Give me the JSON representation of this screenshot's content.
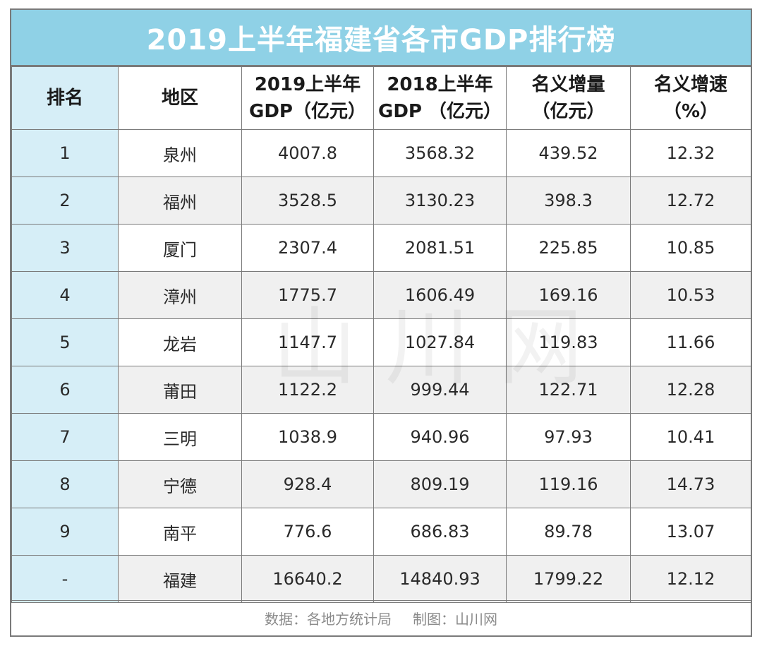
{
  "title": "2019上半年福建省各市GDP排行榜",
  "headers": {
    "rank": "排名",
    "region": "地区",
    "gdp2019_line1": "2019上半年",
    "gdp2019_line2": "GDP（亿元）",
    "gdp2018_line1": "2018上半年",
    "gdp2018_line2": "GDP （亿元）",
    "increase_line1": "名义增量",
    "increase_line2": "（亿元）",
    "rate_line1": "名义增速",
    "rate_line2": "（%）"
  },
  "rows": [
    {
      "rank": "1",
      "region": "泉州",
      "gdp2019": "4007.8",
      "gdp2018": "3568.32",
      "increase": "439.52",
      "rate": "12.32"
    },
    {
      "rank": "2",
      "region": "福州",
      "gdp2019": "3528.5",
      "gdp2018": "3130.23",
      "increase": "398.3",
      "rate": "12.72"
    },
    {
      "rank": "3",
      "region": "厦门",
      "gdp2019": "2307.4",
      "gdp2018": "2081.51",
      "increase": "225.85",
      "rate": "10.85"
    },
    {
      "rank": "4",
      "region": "漳州",
      "gdp2019": "1775.7",
      "gdp2018": "1606.49",
      "increase": "169.16",
      "rate": "10.53"
    },
    {
      "rank": "5",
      "region": "龙岩",
      "gdp2019": "1147.7",
      "gdp2018": "1027.84",
      "increase": "119.83",
      "rate": "11.66"
    },
    {
      "rank": "6",
      "region": "莆田",
      "gdp2019": "1122.2",
      "gdp2018": "999.44",
      "increase": "122.71",
      "rate": "12.28"
    },
    {
      "rank": "7",
      "region": "三明",
      "gdp2019": "1038.9",
      "gdp2018": "940.96",
      "increase": "97.93",
      "rate": "10.41"
    },
    {
      "rank": "8",
      "region": "宁德",
      "gdp2019": "928.4",
      "gdp2018": "809.19",
      "increase": "119.16",
      "rate": "14.73"
    },
    {
      "rank": "9",
      "region": "南平",
      "gdp2019": "776.6",
      "gdp2018": "686.83",
      "increase": "89.78",
      "rate": "13.07"
    },
    {
      "rank": "-",
      "region": "福建",
      "gdp2019": "16640.2",
      "gdp2018": "14840.93",
      "increase": "1799.22",
      "rate": "12.12"
    }
  ],
  "footer": {
    "source": "数据：各地方统计局",
    "credit": "制图：山川网"
  },
  "watermark": "山川网",
  "colors": {
    "title_bg": "#8fd1e6",
    "rank_col_bg": "#d6eef7",
    "border": "#7a7a7a"
  }
}
